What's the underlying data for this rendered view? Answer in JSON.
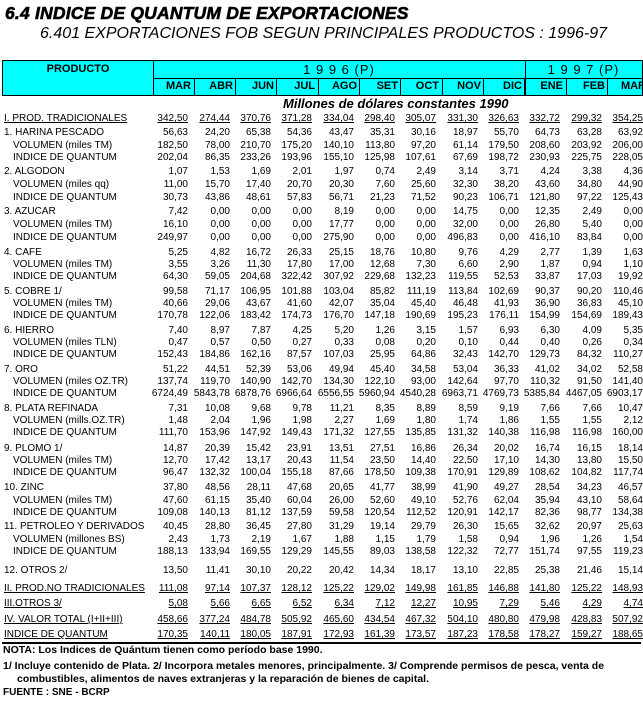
{
  "title": "6.4 INDICE DE QUANTUM DE EXPORTACIONES",
  "subtitle": "6.401  EXPORTACIONES FOB SEGUN PRINCIPALES PRODUCTOS : 1996-97",
  "header": {
    "producto": "PRODUCTO",
    "year1": "1 9 9 6 (P)",
    "year2": "1 9 9 7 (P)",
    "months": [
      "MAR",
      "ABR",
      "JUN",
      "JUL",
      "AGO",
      "SET",
      "OCT",
      "NOV",
      "DIC",
      "ENE",
      "FEB",
      "MAR"
    ],
    "color": "#00FFFF"
  },
  "unit": "Millones de dólares constantes 1990",
  "rows": [
    {
      "label": "I. PROD. TRADICIONALES",
      "kind": "total",
      "values": [
        "342,50",
        "274,44",
        "370,76",
        "371,28",
        "334,04",
        "298,40",
        "305,07",
        "331,30",
        "326,63",
        "332,72",
        "299,32",
        "354,25"
      ]
    },
    {
      "label": "1. HARINA PESCADO",
      "kind": "item",
      "values": [
        "56,63",
        "24,20",
        "65,38",
        "54,36",
        "43,47",
        "35,31",
        "30,16",
        "18,97",
        "55,70",
        "64,73",
        "63,28",
        "63,92"
      ]
    },
    {
      "label": "VOLUMEN (miles TM)",
      "kind": "sub",
      "values": [
        "182,50",
        "78,00",
        "210,70",
        "175,20",
        "140,10",
        "113,80",
        "97,20",
        "61,14",
        "179,50",
        "208,60",
        "203,92",
        "206,00"
      ]
    },
    {
      "label": "INDICE DE QUANTUM",
      "kind": "sub",
      "values": [
        "202,04",
        "86,35",
        "233,26",
        "193,96",
        "155,10",
        "125,98",
        "107,61",
        "67,69",
        "198,72",
        "230,93",
        "225,75",
        "228,05"
      ]
    },
    {
      "label": "2. ALGODON",
      "kind": "item",
      "values": [
        "1,07",
        "1,53",
        "1,69",
        "2,01",
        "1,97",
        "0,74",
        "2,49",
        "3,14",
        "3,71",
        "4,24",
        "3,38",
        "4,36"
      ]
    },
    {
      "label": "VOLUMEN (miles qq)",
      "kind": "sub",
      "values": [
        "11,00",
        "15,70",
        "17,40",
        "20,70",
        "20,30",
        "7,60",
        "25,60",
        "32,30",
        "38,20",
        "43,60",
        "34,80",
        "44,90"
      ]
    },
    {
      "label": "INDICE DE QUANTUM",
      "kind": "sub",
      "values": [
        "30,73",
        "43,86",
        "48,61",
        "57,83",
        "56,71",
        "21,23",
        "71,52",
        "90,23",
        "106,71",
        "121,80",
        "97,22",
        "125,43"
      ]
    },
    {
      "label": "3. AZUCAR",
      "kind": "item",
      "values": [
        "7,42",
        "0,00",
        "0,00",
        "0,00",
        "8,19",
        "0,00",
        "0,00",
        "14,75",
        "0,00",
        "12,35",
        "2,49",
        "0,00"
      ]
    },
    {
      "label": "VOLUMEN (miles TM)",
      "kind": "sub",
      "values": [
        "16,10",
        "0,00",
        "0,00",
        "0,00",
        "17,77",
        "0,00",
        "0,00",
        "32,00",
        "0,00",
        "26,80",
        "5,40",
        "0,00"
      ]
    },
    {
      "label": "INDICE DE QUANTUM",
      "kind": "sub",
      "values": [
        "249,97",
        "0,00",
        "0,00",
        "0,00",
        "275,90",
        "0,00",
        "0,00",
        "496,83",
        "0,00",
        "416,10",
        "83,84",
        "0,00"
      ]
    },
    {
      "label": "4. CAFE",
      "kind": "item",
      "values": [
        "5,25",
        "4,82",
        "16,72",
        "26,33",
        "25,15",
        "18,76",
        "10,80",
        "9,76",
        "4,29",
        "2,77",
        "1,39",
        "1,63"
      ]
    },
    {
      "label": "VOLUMEN (miles TM)",
      "kind": "sub",
      "values": [
        "3,55",
        "3,26",
        "11,30",
        "17,80",
        "17,00",
        "12,68",
        "7,30",
        "6,60",
        "2,90",
        "1,87",
        "0,94",
        "1,10"
      ]
    },
    {
      "label": "INDICE DE QUANTUM",
      "kind": "sub",
      "values": [
        "64,30",
        "59,05",
        "204,68",
        "322,42",
        "307,92",
        "229,68",
        "132,23",
        "119,55",
        "52,53",
        "33,87",
        "17,03",
        "19,92"
      ]
    },
    {
      "label": "5. COBRE 1/",
      "kind": "item",
      "values": [
        "99,58",
        "71,17",
        "106,95",
        "101,88",
        "103,04",
        "85,82",
        "111,19",
        "113,84",
        "102,69",
        "90,37",
        "90,20",
        "110,46"
      ]
    },
    {
      "label": "VOLUMEN (miles TM)",
      "kind": "sub",
      "values": [
        "40,66",
        "29,06",
        "43,67",
        "41,60",
        "42,07",
        "35,04",
        "45,40",
        "46,48",
        "41,93",
        "36,90",
        "36,83",
        "45,10"
      ]
    },
    {
      "label": "INDICE DE QUANTUM",
      "kind": "sub",
      "values": [
        "170,78",
        "122,06",
        "183,42",
        "174,73",
        "176,70",
        "147,18",
        "190,69",
        "195,23",
        "176,11",
        "154,99",
        "154,69",
        "189,43"
      ]
    },
    {
      "label": "6. HIERRO",
      "kind": "item",
      "values": [
        "7,40",
        "8,97",
        "7,87",
        "4,25",
        "5,20",
        "1,26",
        "3,15",
        "1,57",
        "6,93",
        "6,30",
        "4,09",
        "5,35"
      ]
    },
    {
      "label": "VOLUMEN (miles TLN)",
      "kind": "sub",
      "values": [
        "0,47",
        "0,57",
        "0,50",
        "0,27",
        "0,33",
        "0,08",
        "0,20",
        "0,10",
        "0,44",
        "0,40",
        "0,26",
        "0,34"
      ]
    },
    {
      "label": "INDICE DE QUANTUM",
      "kind": "sub",
      "values": [
        "152,43",
        "184,86",
        "162,16",
        "87,57",
        "107,03",
        "25,95",
        "64,86",
        "32,43",
        "142,70",
        "129,73",
        "84,32",
        "110,27"
      ]
    },
    {
      "label": "7. ORO",
      "kind": "item",
      "values": [
        "51,22",
        "44,51",
        "52,39",
        "53,06",
        "49,94",
        "45,40",
        "34,58",
        "53,04",
        "36,33",
        "41,02",
        "34,02",
        "52,58"
      ]
    },
    {
      "label": "VOLUMEN (miles OZ.TR)",
      "kind": "sub",
      "values": [
        "137,74",
        "119,70",
        "140,90",
        "142,70",
        "134,30",
        "122,10",
        "93,00",
        "142,64",
        "97,70",
        "110,32",
        "91,50",
        "141,40"
      ]
    },
    {
      "label": "INDICE DE QUANTUM",
      "kind": "sub",
      "values": [
        "6724,49",
        "5843,78",
        "6878,76",
        "6966,64",
        "6556,55",
        "5960,94",
        "4540,28",
        "6963,71",
        "4769,73",
        "5385,84",
        "4467,05",
        "6903,17"
      ]
    },
    {
      "label": "8. PLATA REFINADA",
      "kind": "item",
      "values": [
        "7,31",
        "10,08",
        "9,68",
        "9,78",
        "11,21",
        "8,35",
        "8,89",
        "8,59",
        "9,19",
        "7,66",
        "7,66",
        "10,47"
      ]
    },
    {
      "label": "VOLUMEN (mills.OZ.TR)",
      "kind": "sub",
      "values": [
        "1,48",
        "2,04",
        "1,96",
        "1,98",
        "2,27",
        "1,69",
        "1,80",
        "1,74",
        "1,86",
        "1,55",
        "1,55",
        "2,12"
      ]
    },
    {
      "label": "INDICE DE QUANTUM",
      "kind": "sub",
      "values": [
        "111,70",
        "153,96",
        "147,92",
        "149,43",
        "171,32",
        "127,55",
        "135,85",
        "131,32",
        "140,38",
        "116,98",
        "116,98",
        "160,00"
      ]
    },
    {
      "label": "9. PLOMO 1/",
      "kind": "item",
      "values": [
        "14,87",
        "20,39",
        "15,42",
        "23,91",
        "13,51",
        "27,51",
        "16,86",
        "26,34",
        "20,02",
        "16,74",
        "16,15",
        "18,14"
      ]
    },
    {
      "label": "VOLUMEN (miles TM)",
      "kind": "sub",
      "values": [
        "12,70",
        "17,42",
        "13,17",
        "20,43",
        "11,54",
        "23,50",
        "14,40",
        "22,50",
        "17,10",
        "14,30",
        "13,80",
        "15,50"
      ]
    },
    {
      "label": "INDICE DE QUANTUM",
      "kind": "sub",
      "values": [
        "96,47",
        "132,32",
        "100,04",
        "155,18",
        "87,66",
        "178,50",
        "109,38",
        "170,91",
        "129,89",
        "108,62",
        "104,82",
        "117,74"
      ]
    },
    {
      "label": "10. ZINC",
      "kind": "item",
      "values": [
        "37,80",
        "48,56",
        "28,11",
        "47,68",
        "20,65",
        "41,77",
        "38,99",
        "41,90",
        "49,27",
        "28,54",
        "34,23",
        "46,57"
      ]
    },
    {
      "label": "VOLUMEN (miles TM)",
      "kind": "sub",
      "values": [
        "47,60",
        "61,15",
        "35,40",
        "60,04",
        "26,00",
        "52,60",
        "49,10",
        "52,76",
        "62,04",
        "35,94",
        "43,10",
        "58,64"
      ]
    },
    {
      "label": "INDICE DE QUANTUM",
      "kind": "sub",
      "values": [
        "109,08",
        "140,13",
        "81,12",
        "137,59",
        "59,58",
        "120,54",
        "112,52",
        "120,91",
        "142,17",
        "82,36",
        "98,77",
        "134,38"
      ]
    },
    {
      "label": "11. PETROLEO Y DERIVADOS",
      "kind": "item",
      "values": [
        "40,45",
        "28,80",
        "36,45",
        "27,80",
        "31,29",
        "19,14",
        "29,79",
        "26,30",
        "15,65",
        "32,62",
        "20,97",
        "25,63"
      ]
    },
    {
      "label": "VOLUMEN (millones BS)",
      "kind": "sub",
      "values": [
        "2,43",
        "1,73",
        "2,19",
        "1,67",
        "1,88",
        "1,15",
        "1,79",
        "1,58",
        "0,94",
        "1,96",
        "1,26",
        "1,54"
      ]
    },
    {
      "label": "INDICE DE QUANTUM",
      "kind": "sub",
      "values": [
        "188,13",
        "133,94",
        "169,55",
        "129,29",
        "145,55",
        "89,03",
        "138,58",
        "122,32",
        "72,77",
        "151,74",
        "97,55",
        "119,23"
      ]
    },
    {
      "label": "12. OTROS   2/",
      "kind": "item",
      "values": [
        "13,50",
        "11,41",
        "30,10",
        "20,22",
        "20,42",
        "14,34",
        "18,17",
        "13,10",
        "22,85",
        "25,38",
        "21,46",
        "15,14"
      ]
    },
    {
      "label": "II. PROD.NO TRADICIONALES",
      "kind": "total",
      "values": [
        "111,08",
        "97,14",
        "107,37",
        "128,12",
        "125,22",
        "129,02",
        "149,98",
        "161,85",
        "146,88",
        "141,80",
        "125,22",
        "148,93"
      ]
    },
    {
      "label": "III.OTROS   3/",
      "kind": "total",
      "values": [
        "5,08",
        "5,66",
        "6,65",
        "6,52",
        "6,34",
        "7,12",
        "12,27",
        "10,95",
        "7,29",
        "5,46",
        "4,29",
        "4,74"
      ]
    },
    {
      "label": "IV. VALOR TOTAL (I+II+III)",
      "kind": "total",
      "values": [
        "458,66",
        "377,24",
        "484,78",
        "505,92",
        "465,60",
        "434,54",
        "467,32",
        "504,10",
        "480,80",
        "479,98",
        "428,83",
        "507,92"
      ]
    },
    {
      "label": "INDICE DE QUANTUM",
      "kind": "total",
      "values": [
        "170,35",
        "140,11",
        "180,05",
        "187,91",
        "172,93",
        "161,39",
        "173,57",
        "187,23",
        "178,58",
        "178,27",
        "159,27",
        "188,65"
      ]
    }
  ],
  "notes": {
    "nota": "NOTA: Los Indices de Quántum tienen como período base 1990.",
    "footnote1": "1/  Incluye contenido de Plata.  2/ Incorpora metales menores, principalmente.  3/ Comprende permisos de pesca, venta de",
    "footnote2": "combustibles, alimentos de naves extranjeras y la reparación de bienes de capital.",
    "fuente": "FUENTE : SNE - BCRP"
  }
}
